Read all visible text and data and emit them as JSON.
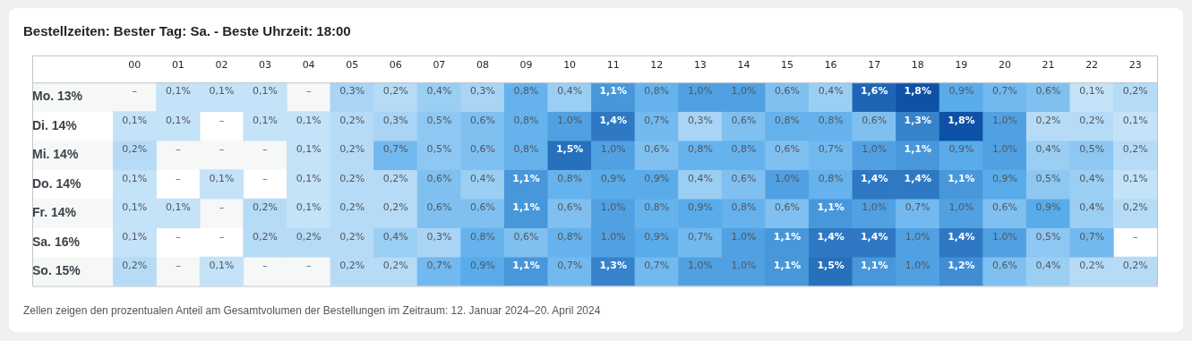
{
  "chart_data": {
    "type": "heatmap",
    "title": "Bestellzeiten: Bester Tag: Sa. - Beste Uhrzeit: 18:00",
    "categories": [
      "00",
      "01",
      "02",
      "03",
      "04",
      "05",
      "06",
      "07",
      "08",
      "09",
      "10",
      "11",
      "12",
      "13",
      "14",
      "15",
      "16",
      "17",
      "18",
      "19",
      "20",
      "21",
      "22",
      "23"
    ],
    "y_categories": [
      "Mo. 13%",
      "Di. 14%",
      "Mi. 14%",
      "Do. 14%",
      "Fr. 14%",
      "Sa. 16%",
      "So. 15%"
    ],
    "cells": [
      [
        null,
        0.1,
        0.1,
        0.1,
        null,
        0.3,
        0.2,
        0.4,
        0.3,
        0.8,
        0.4,
        1.1,
        0.8,
        1.0,
        1.0,
        0.6,
        0.4,
        1.6,
        1.8,
        0.9,
        0.7,
        0.6,
        0.1,
        0.2
      ],
      [
        0.1,
        0.1,
        null,
        0.1,
        0.1,
        0.2,
        0.3,
        0.5,
        0.6,
        0.8,
        1.0,
        1.4,
        0.7,
        0.3,
        0.6,
        0.8,
        0.8,
        0.6,
        1.3,
        1.8,
        1.0,
        0.2,
        0.2,
        0.1
      ],
      [
        0.2,
        null,
        null,
        null,
        0.1,
        0.2,
        0.7,
        0.5,
        0.6,
        0.8,
        1.5,
        1.0,
        0.6,
        0.8,
        0.8,
        0.6,
        0.7,
        1.0,
        1.1,
        0.9,
        1.0,
        0.4,
        0.5,
        0.2
      ],
      [
        0.1,
        null,
        0.1,
        null,
        0.1,
        0.2,
        0.2,
        0.6,
        0.4,
        1.1,
        0.8,
        0.9,
        0.9,
        0.4,
        0.6,
        1.0,
        0.8,
        1.4,
        1.4,
        1.1,
        0.9,
        0.5,
        0.4,
        0.1
      ],
      [
        0.1,
        0.1,
        null,
        0.2,
        0.1,
        0.2,
        0.2,
        0.6,
        0.6,
        1.1,
        0.6,
        1.0,
        0.8,
        0.9,
        0.8,
        0.6,
        1.1,
        1.0,
        0.7,
        1.0,
        0.6,
        0.9,
        0.4,
        0.2
      ],
      [
        0.1,
        null,
        null,
        0.2,
        0.2,
        0.2,
        0.4,
        0.3,
        0.8,
        0.6,
        0.8,
        1.0,
        0.9,
        0.7,
        1.0,
        1.1,
        1.4,
        1.4,
        1.0,
        1.4,
        1.0,
        0.5,
        0.7,
        null
      ],
      [
        0.2,
        null,
        0.1,
        null,
        null,
        0.2,
        0.2,
        0.7,
        0.9,
        1.1,
        0.7,
        1.3,
        0.7,
        1.0,
        1.0,
        1.1,
        1.5,
        1.1,
        1.0,
        1.2,
        0.6,
        0.4,
        0.2,
        0.2
      ]
    ],
    "cell_labels": [
      [
        "–",
        "0,1%",
        "0,1%",
        "0,1%",
        "–",
        "0,3%",
        "0,2%",
        "0,4%",
        "0,3%",
        "0,8%",
        "0,4%",
        "1,1%",
        "0,8%",
        "1,0%",
        "1,0%",
        "0,6%",
        "0,4%",
        "1,6%",
        "1,8%",
        "0,9%",
        "0,7%",
        "0,6%",
        "0,1%",
        "0,2%"
      ],
      [
        "0,1%",
        "0,1%",
        "–",
        "0,1%",
        "0,1%",
        "0,2%",
        "0,3%",
        "0,5%",
        "0,6%",
        "0,8%",
        "1,0%",
        "1,4%",
        "0,7%",
        "0,3%",
        "0,6%",
        "0,8%",
        "0,8%",
        "0,6%",
        "1,3%",
        "1,8%",
        "1,0%",
        "0,2%",
        "0,2%",
        "0,1%"
      ],
      [
        "0,2%",
        "–",
        "–",
        "–",
        "0,1%",
        "0,2%",
        "0,7%",
        "0,5%",
        "0,6%",
        "0,8%",
        "1,5%",
        "1,0%",
        "0,6%",
        "0,8%",
        "0,8%",
        "0,6%",
        "0,7%",
        "1,0%",
        "1,1%",
        "0,9%",
        "1,0%",
        "0,4%",
        "0,5%",
        "0,2%"
      ],
      [
        "0,1%",
        "–",
        "0,1%",
        "–",
        "0,1%",
        "0,2%",
        "0,2%",
        "0,6%",
        "0,4%",
        "1,1%",
        "0,8%",
        "0,9%",
        "0,9%",
        "0,4%",
        "0,6%",
        "1,0%",
        "0,8%",
        "1,4%",
        "1,4%",
        "1,1%",
        "0,9%",
        "0,5%",
        "0,4%",
        "0,1%"
      ],
      [
        "0,1%",
        "0,1%",
        "–",
        "0,2%",
        "0,1%",
        "0,2%",
        "0,2%",
        "0,6%",
        "0,6%",
        "1,1%",
        "0,6%",
        "1,0%",
        "0,8%",
        "0,9%",
        "0,8%",
        "0,6%",
        "1,1%",
        "1,0%",
        "0,7%",
        "1,0%",
        "0,6%",
        "0,9%",
        "0,4%",
        "0,2%"
      ],
      [
        "0,1%",
        "–",
        "–",
        "0,2%",
        "0,2%",
        "0,2%",
        "0,4%",
        "0,3%",
        "0,8%",
        "0,6%",
        "0,8%",
        "1,0%",
        "0,9%",
        "0,7%",
        "1,0%",
        "1,1%",
        "1,4%",
        "1,4%",
        "1,0%",
        "1,4%",
        "1,0%",
        "0,5%",
        "0,7%",
        "–"
      ],
      [
        "0,2%",
        "–",
        "0,1%",
        "–",
        "–",
        "0,2%",
        "0,2%",
        "0,7%",
        "0,9%",
        "1,1%",
        "0,7%",
        "1,3%",
        "0,7%",
        "1,0%",
        "1,0%",
        "1,1%",
        "1,5%",
        "1,1%",
        "1,0%",
        "1,2%",
        "0,6%",
        "0,4%",
        "0,2%",
        "0,2%"
      ]
    ],
    "annotations": [
      "Zellen zeigen den prozentualen Anteil am Gesamtvolumen der Bestellungen im Zeitraum: 12. Januar 2024–20. April 2024"
    ]
  }
}
